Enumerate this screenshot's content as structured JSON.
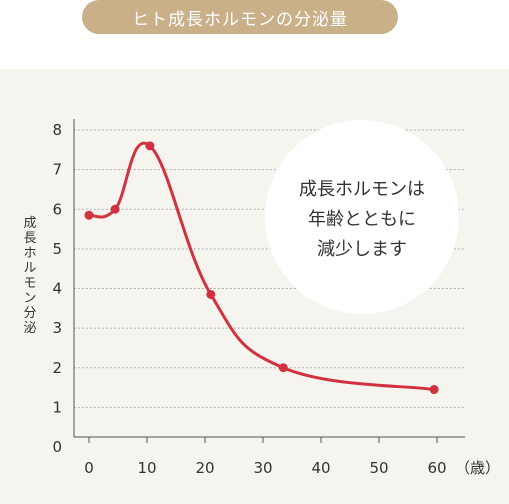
{
  "title": "ヒト成長ホルモンの分泌量",
  "colors": {
    "pill": "#c9b089",
    "panel": "#f6f4ef",
    "line": "#d1323f",
    "grid": "#9a9a9a",
    "axis": "#555555",
    "bubble": "#ffffff"
  },
  "annotation": {
    "lines": [
      "成長ホルモンは",
      "年齢とともに",
      "減少します"
    ]
  },
  "chart_data": {
    "type": "line",
    "xlabel_unit": "（歳）",
    "ylabel": "成長ホルモン分泌",
    "xlim": [
      0,
      60
    ],
    "ylim": [
      0,
      8
    ],
    "x_ticks": [
      "0",
      "10",
      "20",
      "30",
      "40",
      "50",
      "60"
    ],
    "y_ticks": [
      "0",
      "1",
      "2",
      "3",
      "4",
      "5",
      "6",
      "7",
      "8"
    ],
    "grid": "horizontal dotted",
    "series": [
      {
        "x": [
          0,
          4.5,
          10.5,
          21,
          33.5,
          59.5
        ],
        "y": [
          5.85,
          6.0,
          7.6,
          3.85,
          2.0,
          1.45
        ]
      }
    ]
  }
}
